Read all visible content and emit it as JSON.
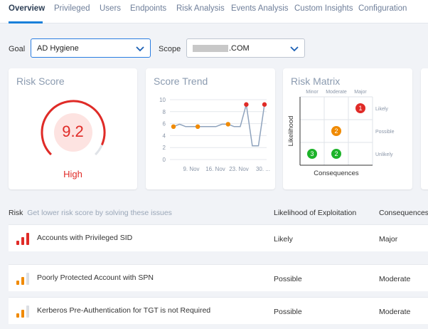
{
  "tabs": [
    "Overview",
    "Privileged",
    "Users",
    "Endpoints",
    "Risk Analysis",
    "Events Analysis",
    "Custom Insights",
    "Configuration"
  ],
  "filters": {
    "goal_label": "Goal",
    "goal_value": "AD Hygiene",
    "scope_label": "Scope",
    "scope_suffix": ".COM"
  },
  "risk_score": {
    "title": "Risk Score",
    "value": "9.2",
    "value_fraction": 0.92,
    "level": "High",
    "color": "#e02b27"
  },
  "score_trend": {
    "title": "Score Trend"
  },
  "risk_matrix": {
    "title": "Risk Matrix",
    "columns": [
      "Minor",
      "Moderate",
      "Major"
    ],
    "rows": [
      "Likely",
      "Possible",
      "Unlikely"
    ],
    "x_axis": "Consequences",
    "y_axis": "Likelihood",
    "cells": [
      {
        "row": "Likely",
        "col": "Major",
        "count": "1",
        "color": "#e02b27"
      },
      {
        "row": "Possible",
        "col": "Moderate",
        "count": "2",
        "color": "#f08a00"
      },
      {
        "row": "Unlikely",
        "col": "Minor",
        "count": "3",
        "color": "#1db32a"
      },
      {
        "row": "Unlikely",
        "col": "Moderate",
        "count": "2",
        "color": "#1db32a"
      }
    ]
  },
  "table": {
    "headers": {
      "risk": "Risk",
      "hint": "Get lower risk score by solving these issues",
      "likelihood": "Likelihood of Exploitation",
      "consequences": "Consequences"
    },
    "rows": [
      {
        "name": "Accounts with Privileged SID",
        "likelihood": "Likely",
        "consequences": "Major",
        "severity": "high"
      },
      {
        "name": "Poorly Protected Account with SPN",
        "likelihood": "Possible",
        "consequences": "Moderate",
        "severity": "medium"
      },
      {
        "name": "Kerberos Pre-Authentication for TGT is not Required",
        "likelihood": "Possible",
        "consequences": "Moderate",
        "severity": "medium"
      }
    ]
  },
  "chart_data": {
    "type": "line",
    "title": "Score Trend",
    "x_tick_labels": [
      "9. Nov",
      "16. Nov",
      "23. Nov",
      "30. ..."
    ],
    "ylim": [
      0,
      10
    ],
    "y_ticks": [
      0,
      2,
      4,
      6,
      8,
      10
    ],
    "grid": true,
    "series": [
      {
        "color": "#8fa3bd",
        "values": [
          5.5,
          5.9,
          5.5,
          5.5,
          5.5,
          5.5,
          5.5,
          5.5,
          5.9,
          5.9,
          5.5,
          5.5,
          9.2,
          2.3,
          2.3,
          9.2
        ],
        "markers": [
          {
            "index": 0,
            "value": 5.5,
            "color": "#f08a00"
          },
          {
            "index": 4,
            "value": 5.5,
            "color": "#f08a00"
          },
          {
            "index": 9,
            "value": 5.9,
            "color": "#f08a00"
          },
          {
            "index": 12,
            "value": 9.2,
            "color": "#e02b27"
          },
          {
            "index": 15,
            "value": 9.2,
            "color": "#e02b27"
          }
        ]
      }
    ]
  }
}
